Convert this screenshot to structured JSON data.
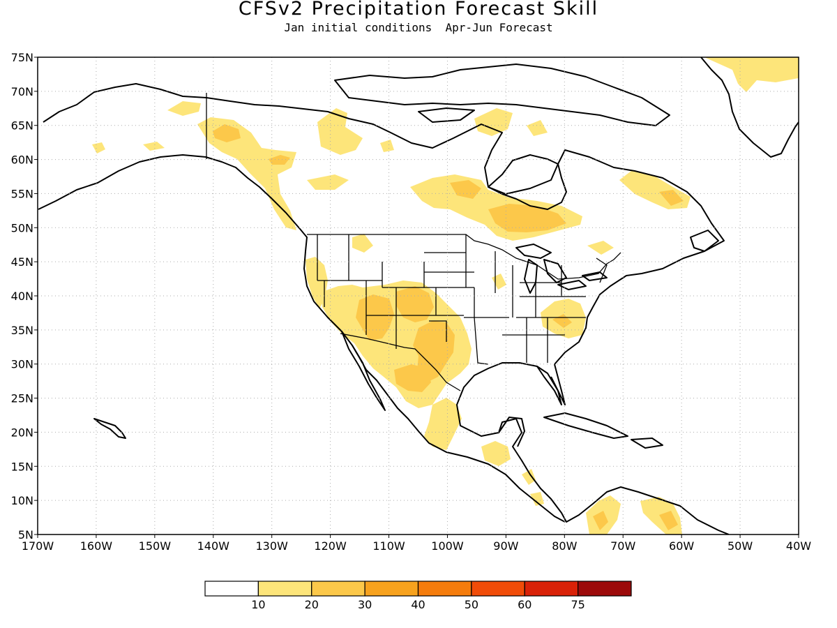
{
  "title": "CFSv2 Precipitation Forecast Skill",
  "subtitle": "Jan initial conditions  Apr-Jun Forecast",
  "lat_labels": [
    "75N",
    "70N",
    "65N",
    "60N",
    "55N",
    "50N",
    "45N",
    "40N",
    "35N",
    "30N",
    "25N",
    "20N",
    "15N",
    "10N",
    "5N"
  ],
  "lon_labels": [
    "170W",
    "160W",
    "150W",
    "140W",
    "130W",
    "120W",
    "110W",
    "100W",
    "90W",
    "80W",
    "70W",
    "60W",
    "50W",
    "40W"
  ],
  "map": {
    "projection": "cylindrical equidistant",
    "lon_range": [
      -170,
      -40
    ],
    "lat_range": [
      5,
      75
    ],
    "gridlines": "dotted, every 10 degrees longitude and 5 degrees latitude",
    "features": [
      "coastlines",
      "US state borders",
      "Canada-US border"
    ]
  },
  "colorbar": {
    "labels": [
      "10",
      "20",
      "30",
      "40",
      "50",
      "60",
      "75"
    ],
    "colors": [
      "#ffffff",
      "#fde57a",
      "#fcc84a",
      "#f7a21e",
      "#f57c0c",
      "#f04c08",
      "#d92208",
      "#9c0a0a"
    ]
  },
  "skill_regions": [
    {
      "name": "Southwest US and northern Mexico",
      "level": "20-30"
    },
    {
      "name": "Texas and southern Plains",
      "level": "20-30"
    },
    {
      "name": "Central Canada (Manitoba/Ontario)",
      "level": "20-30"
    },
    {
      "name": "Yukon",
      "level": "20-30"
    },
    {
      "name": "Southeast US (Carolinas/Virginia)",
      "level": "10-20"
    },
    {
      "name": "Labrador",
      "level": "10-30"
    },
    {
      "name": "Central Mexico",
      "level": "10-20"
    },
    {
      "name": "Northern South America",
      "level": "10-30"
    },
    {
      "name": "Greenland",
      "level": "10-20"
    }
  ]
}
